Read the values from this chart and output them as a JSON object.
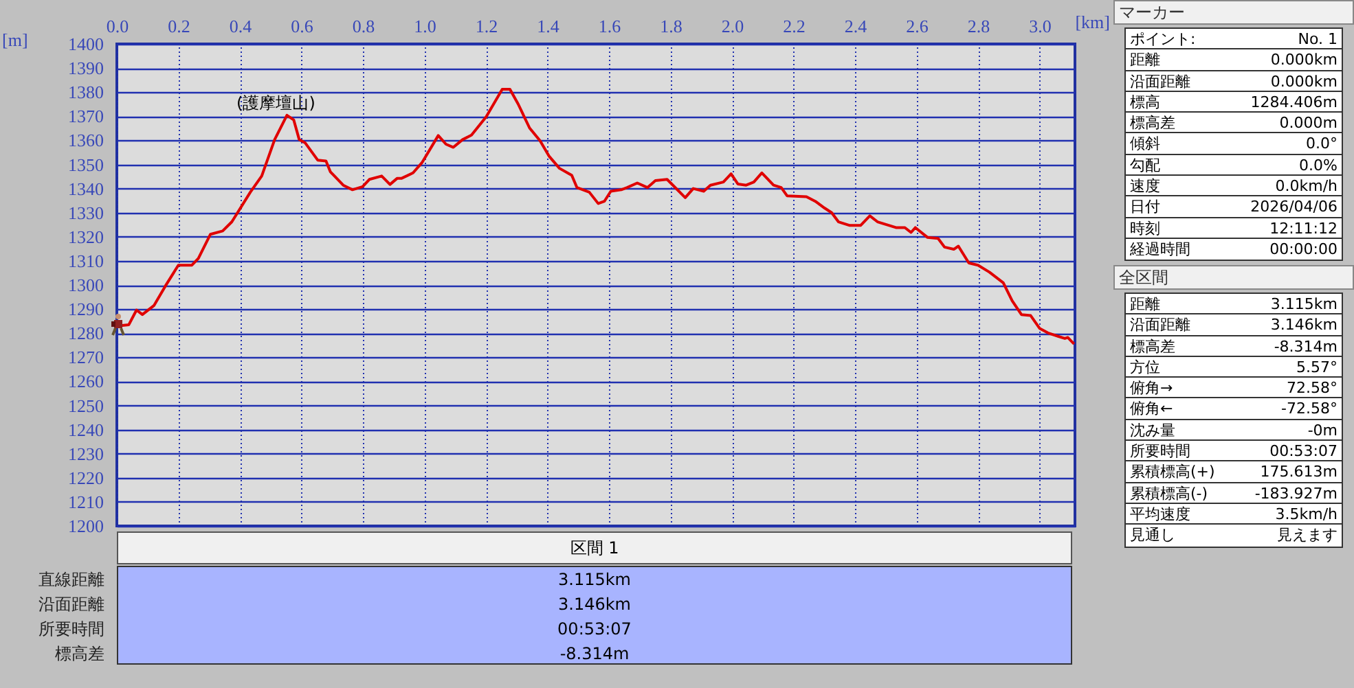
{
  "chart_data": [
    {
      "type": "line",
      "xlabel": "[km]",
      "ylabel": "[m]",
      "color": "#e00000",
      "grid": true,
      "x": [
        0,
        0.012,
        0.039,
        0.064,
        0.083,
        0.121,
        0.158,
        0.2,
        0.244,
        0.265,
        0.304,
        0.344,
        0.374,
        0.434,
        0.471,
        0.513,
        0.553,
        0.575,
        0.593,
        0.612,
        0.653,
        0.68,
        0.694,
        0.736,
        0.766,
        0.799,
        0.821,
        0.861,
        0.888,
        0.911,
        0.925,
        0.963,
        0.993,
        1.045,
        1.07,
        1.094,
        1.124,
        1.153,
        1.201,
        1.253,
        1.278,
        1.305,
        1.342,
        1.376,
        1.406,
        1.439,
        1.479,
        1.496,
        1.536,
        1.565,
        1.585,
        1.606,
        1.64,
        1.659,
        1.692,
        1.725,
        1.751,
        1.789,
        1.848,
        1.874,
        1.908,
        1.93,
        1.972,
        1.997,
        2.019,
        2.046,
        2.071,
        2.097,
        2.135,
        2.16,
        2.179,
        2.242,
        2.271,
        2.301,
        2.324,
        2.346,
        2.383,
        2.418,
        2.448,
        2.473,
        2.533,
        2.562,
        2.582,
        2.596,
        2.636,
        2.67,
        2.691,
        2.721,
        2.736,
        2.77,
        2.8,
        2.837,
        2.882,
        2.911,
        2.941,
        2.971,
        3.0,
        3.027,
        3.06,
        3.082,
        3.092,
        3.112
      ],
      "values": [
        1284.4,
        1283.1,
        1283.5,
        1289.6,
        1287.7,
        1291.5,
        1299.6,
        1308.2,
        1308.2,
        1311,
        1321,
        1322.4,
        1326.2,
        1338.5,
        1345.2,
        1360.3,
        1370.4,
        1368.5,
        1360.3,
        1359,
        1351.8,
        1351.4,
        1347,
        1341.4,
        1339.5,
        1340.8,
        1343.8,
        1345.2,
        1341.7,
        1344.2,
        1344.2,
        1346.5,
        1350.9,
        1362,
        1358.4,
        1357.1,
        1360.3,
        1362.2,
        1369.8,
        1381.2,
        1381.2,
        1375,
        1365.1,
        1359.8,
        1353.3,
        1348.4,
        1345.5,
        1340.4,
        1338.5,
        1333.8,
        1334.7,
        1338.9,
        1339.5,
        1340.4,
        1342.3,
        1340.4,
        1343.3,
        1343.8,
        1336.2,
        1340,
        1338.9,
        1341.4,
        1342.7,
        1346.1,
        1341.9,
        1341.4,
        1342.7,
        1346.5,
        1341.4,
        1340.4,
        1337,
        1336.6,
        1334.7,
        1331.9,
        1330,
        1326.2,
        1324.7,
        1324.7,
        1328.7,
        1326.2,
        1323.8,
        1323.8,
        1321.8,
        1323.8,
        1319.7,
        1319.3,
        1315.7,
        1314.8,
        1316.1,
        1309.1,
        1308.2,
        1305.3,
        1300.9,
        1293.4,
        1287.7,
        1287.3,
        1282,
        1280.1,
        1278.7,
        1277.8,
        1278.2,
        1275.5
      ],
      "xlim": [
        0,
        3.115
      ],
      "ylim": [
        1200,
        1400
      ],
      "xticks": [
        {
          "value": 0,
          "label": "0.0"
        },
        0.2,
        0.4,
        0.6,
        0.8,
        {
          "value": 1,
          "label": "1.0"
        },
        1.2,
        1.4,
        1.6,
        1.8,
        {
          "value": 2,
          "label": "2.0"
        },
        2.2,
        2.4,
        2.6,
        2.8,
        {
          "value": 3,
          "label": "3.0"
        }
      ],
      "yticks": [
        1200,
        1210,
        1220,
        1230,
        1240,
        1250,
        1260,
        1270,
        1280,
        1290,
        1300,
        1310,
        1320,
        1330,
        1340,
        1350,
        1360,
        1370,
        1380,
        1390,
        1400
      ],
      "annotations": [
        {
          "text": "(護摩壇山)",
          "x": 0.553,
          "y": 1370.4
        }
      ]
    },
    {
      "type": "other",
      "title": "区間 1",
      "annotations": [
        "直線距離",
        "3.115km",
        "沿面距離",
        "3.146km",
        "所要時間",
        "00:53:07",
        "標高差",
        "-8.314m"
      ]
    },
    {
      "type": "other",
      "title": "マーカー",
      "annotations": [
        "ポイント:",
        "No. 1",
        "距離",
        "0.000km",
        "沿面距離",
        "0.000km",
        "標高",
        "1284.406m",
        "標高差",
        "0.000m",
        "傾斜",
        "0.0°",
        "勾配",
        "0.0%",
        "速度",
        "0.0km/h",
        "日付",
        "2026/04/06",
        "時刻",
        "12:11:12",
        "経過時間",
        "00:00:00"
      ]
    },
    {
      "type": "other",
      "title": "全区間",
      "annotations": [
        "距離",
        "3.115km",
        "沿面距離",
        "3.146km",
        "標高差",
        "-8.314m",
        "方位",
        "5.57°",
        "俯角→",
        "72.58°",
        "俯角←",
        "-72.58°",
        "沈み量",
        "-0m",
        "所要時間",
        "00:53:07",
        "累積標高(+)",
        "175.613m",
        "累積標高(-)",
        "-183.927m",
        "平均速度",
        "3.5km/h",
        "見通し",
        "見えます"
      ]
    }
  ]
}
